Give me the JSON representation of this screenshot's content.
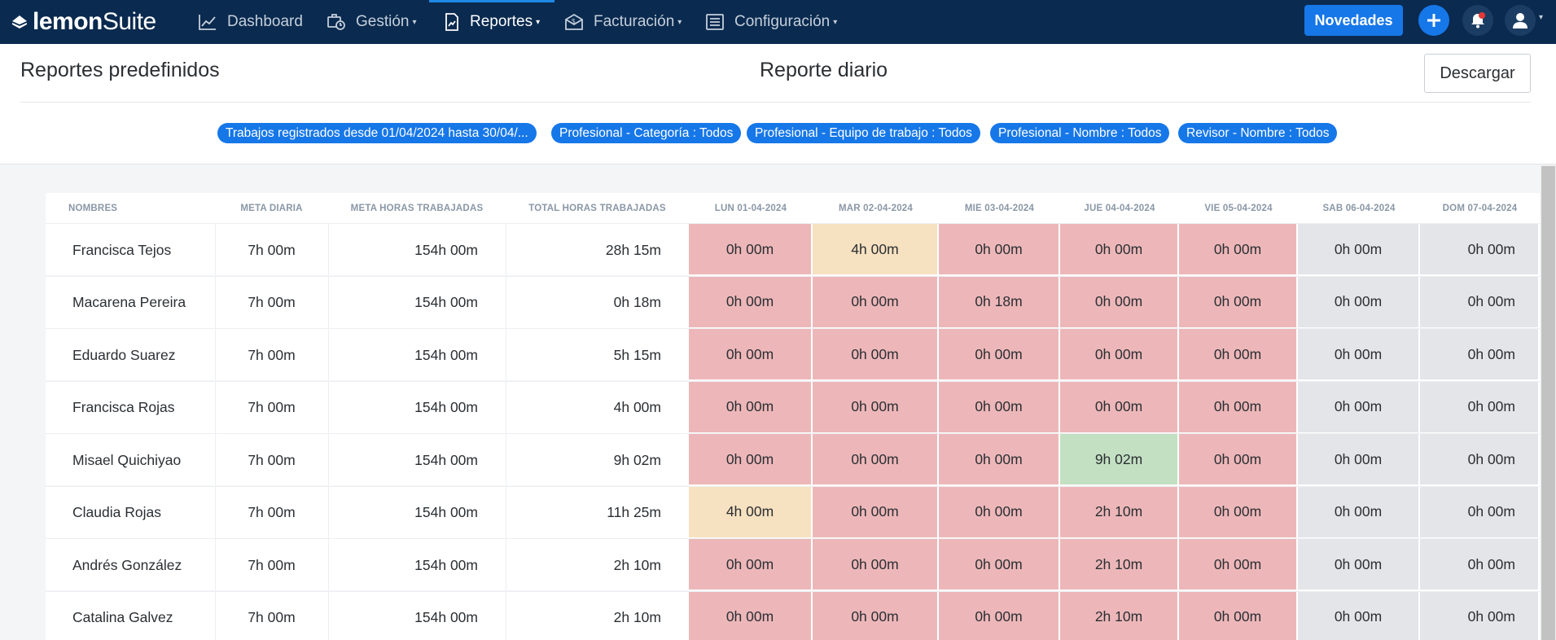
{
  "nav": {
    "logo_bold": "lemon",
    "logo_light": "Suite",
    "items": [
      {
        "label": "Dashboard",
        "icon": "chart-icon",
        "caret": false
      },
      {
        "label": "Gestión",
        "icon": "clock-briefcase-icon",
        "caret": true
      },
      {
        "label": "Reportes",
        "icon": "report-icon",
        "caret": true,
        "active": true
      },
      {
        "label": "Facturación",
        "icon": "invoice-icon",
        "caret": true
      },
      {
        "label": "Configuración",
        "icon": "list-settings-icon",
        "caret": true
      }
    ],
    "novedades": "Novedades",
    "caret_glyph": "▾"
  },
  "header": {
    "page_title": "Reportes predefinidos",
    "report_title": "Reporte diario",
    "download": "Descargar",
    "filters": [
      "Trabajos registrados desde 01/04/2024 hasta 30/04/...",
      "Profesional - Categoría : Todos",
      "Profesional - Equipo de trabajo : Todos",
      "Profesional - Nombre : Todos",
      "Revisor - Nombre : Todos"
    ]
  },
  "table": {
    "columns": [
      "NOMBRES",
      "META DIARIA",
      "META HORAS TRABAJADAS",
      "TOTAL HORAS TRABAJADAS",
      "LUN 01-04-2024",
      "MAR 02-04-2024",
      "MIE 03-04-2024",
      "JUE 04-04-2024",
      "VIE 05-04-2024",
      "SAB 06-04-2024",
      "DOM 07-04-2024"
    ],
    "rows": [
      {
        "name": "Francisca Tejos",
        "meta_diaria": "7h 00m",
        "meta_horas": "154h 00m",
        "total": "28h 15m",
        "days": [
          "0h 00m",
          "4h 00m",
          "0h 00m",
          "0h 00m",
          "0h 00m",
          "0h 00m",
          "0h 00m"
        ],
        "status": [
          "red",
          "yellow",
          "red",
          "red",
          "red",
          "grey",
          "grey"
        ]
      },
      {
        "name": "Macarena Pereira",
        "meta_diaria": "7h 00m",
        "meta_horas": "154h 00m",
        "total": "0h 18m",
        "days": [
          "0h 00m",
          "0h 00m",
          "0h 18m",
          "0h 00m",
          "0h 00m",
          "0h 00m",
          "0h 00m"
        ],
        "status": [
          "red",
          "red",
          "red",
          "red",
          "red",
          "grey",
          "grey"
        ]
      },
      {
        "name": "Eduardo Suarez",
        "meta_diaria": "7h 00m",
        "meta_horas": "154h 00m",
        "total": "5h 15m",
        "days": [
          "0h 00m",
          "0h 00m",
          "0h 00m",
          "0h 00m",
          "0h 00m",
          "0h 00m",
          "0h 00m"
        ],
        "status": [
          "red",
          "red",
          "red",
          "red",
          "red",
          "grey",
          "grey"
        ]
      },
      {
        "name": "Francisca Rojas",
        "meta_diaria": "7h 00m",
        "meta_horas": "154h 00m",
        "total": "4h 00m",
        "days": [
          "0h 00m",
          "0h 00m",
          "0h 00m",
          "0h 00m",
          "0h 00m",
          "0h 00m",
          "0h 00m"
        ],
        "status": [
          "red",
          "red",
          "red",
          "red",
          "red",
          "grey",
          "grey"
        ]
      },
      {
        "name": "Misael Quichiyao",
        "meta_diaria": "7h 00m",
        "meta_horas": "154h 00m",
        "total": "9h 02m",
        "days": [
          "0h 00m",
          "0h 00m",
          "0h 00m",
          "9h 02m",
          "0h 00m",
          "0h 00m",
          "0h 00m"
        ],
        "status": [
          "red",
          "red",
          "red",
          "green",
          "red",
          "grey",
          "grey"
        ]
      },
      {
        "name": "Claudia Rojas",
        "meta_diaria": "7h 00m",
        "meta_horas": "154h 00m",
        "total": "11h 25m",
        "days": [
          "4h 00m",
          "0h 00m",
          "0h 00m",
          "2h 10m",
          "0h 00m",
          "0h 00m",
          "0h 00m"
        ],
        "status": [
          "yellow",
          "red",
          "red",
          "red",
          "red",
          "grey",
          "grey"
        ]
      },
      {
        "name": "Andrés González",
        "meta_diaria": "7h 00m",
        "meta_horas": "154h 00m",
        "total": "2h 10m",
        "days": [
          "0h 00m",
          "0h 00m",
          "0h 00m",
          "2h 10m",
          "0h 00m",
          "0h 00m",
          "0h 00m"
        ],
        "status": [
          "red",
          "red",
          "red",
          "red",
          "red",
          "grey",
          "grey"
        ]
      },
      {
        "name": "Catalina Galvez",
        "meta_diaria": "7h 00m",
        "meta_horas": "154h 00m",
        "total": "2h 10m",
        "days": [
          "0h 00m",
          "0h 00m",
          "0h 00m",
          "2h 10m",
          "0h 00m",
          "0h 00m",
          "0h 00m"
        ],
        "status": [
          "red",
          "red",
          "red",
          "red",
          "red",
          "grey",
          "grey"
        ]
      }
    ]
  },
  "colors": {
    "navbar": "#0a2a4f",
    "accent": "#1677e8",
    "below_goal": "#edb7b9",
    "partial": "#f6e1c0",
    "goal_met": "#c3e0c3",
    "weekend": "#e3e5e8"
  }
}
